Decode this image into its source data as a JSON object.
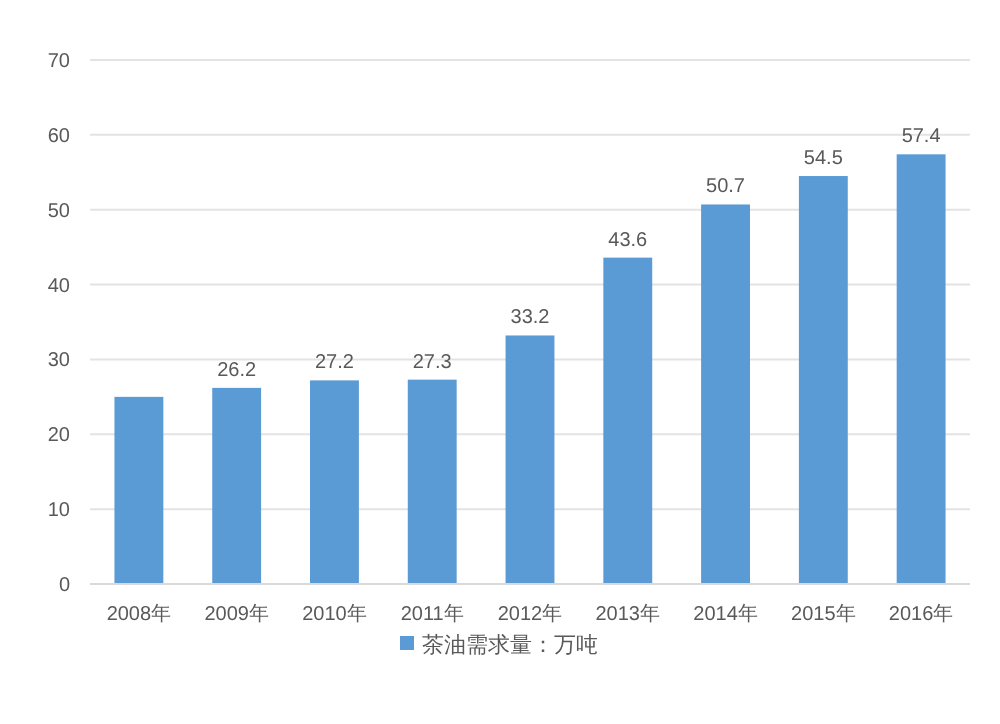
{
  "chart_data": {
    "type": "bar",
    "categories": [
      "2008年",
      "2009年",
      "2010年",
      "2011年",
      "2012年",
      "2013年",
      "2014年",
      "2015年",
      "2016年"
    ],
    "series": [
      {
        "name": "茶油需求量：万吨",
        "color": "#5b9bd5",
        "values": [
          25,
          26.2,
          27.2,
          27.3,
          33.2,
          43.6,
          50.7,
          54.5,
          57.4
        ],
        "value_labels": [
          null,
          "26.2",
          "27.2",
          "27.3",
          "33.2",
          "43.6",
          "50.7",
          "54.5",
          "57.4"
        ]
      }
    ],
    "ylim": [
      0,
      70
    ],
    "yticks": [
      0,
      10,
      20,
      30,
      40,
      50,
      60,
      70
    ],
    "grid": "y",
    "legend": "bottom"
  }
}
